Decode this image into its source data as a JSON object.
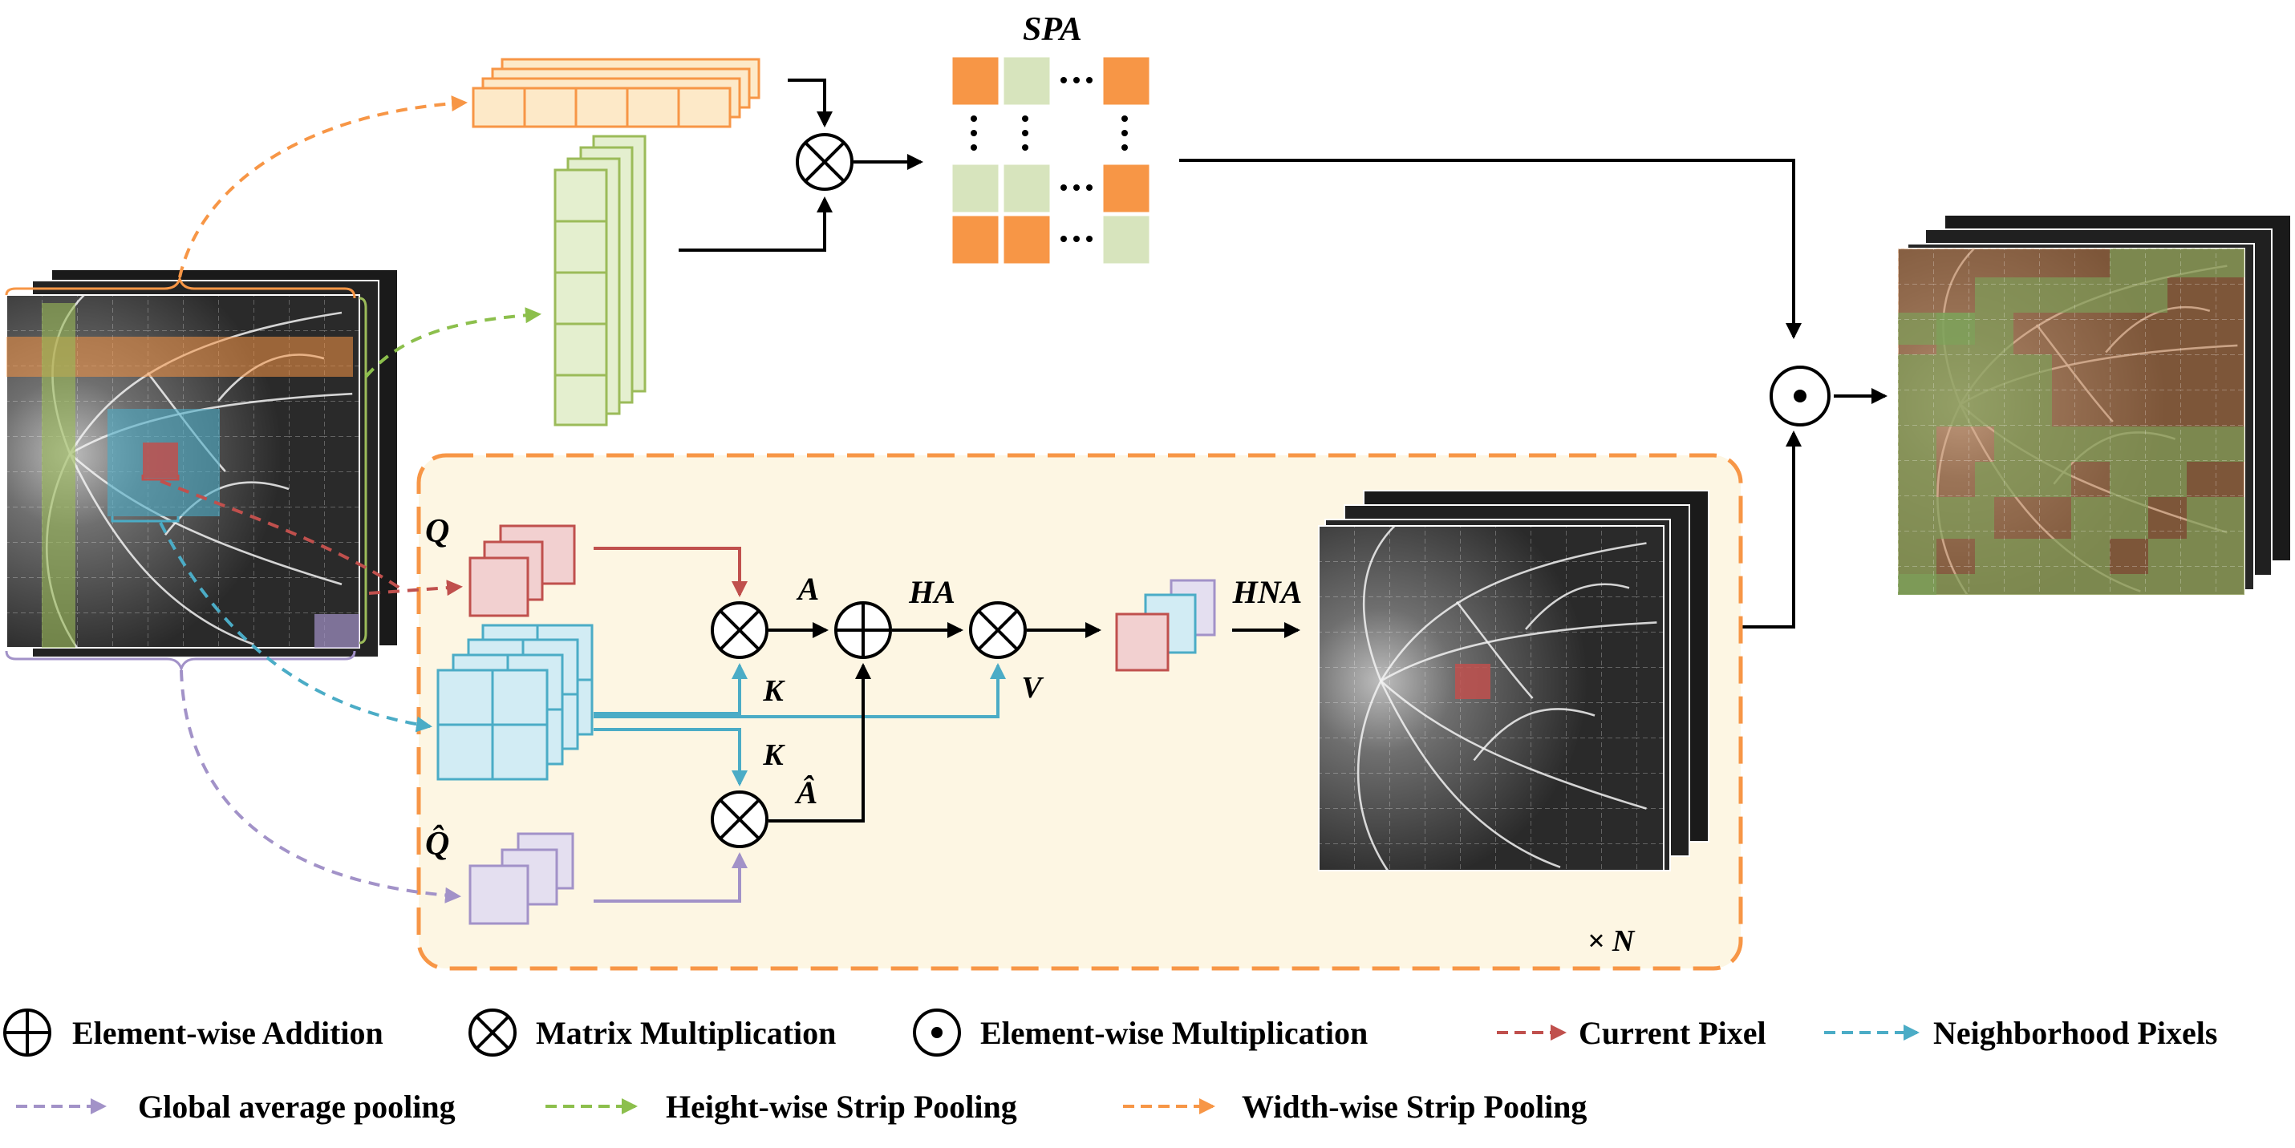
{
  "labels": {
    "spa": "SPA",
    "q": "Q",
    "q_hat": "Q̂",
    "a": "A",
    "ha": "HA",
    "a_hat": "Â",
    "k_top": "K",
    "k_bottom": "K",
    "v": "V",
    "hna": "HNA",
    "repeat": "× N"
  },
  "legend": [
    {
      "symbol": "add",
      "text": "Element-wise Addition"
    },
    {
      "symbol": "mul",
      "text": "Matrix Multiplication"
    },
    {
      "symbol": "dot",
      "text": "Element-wise Multiplication"
    },
    {
      "symbol": "arrow",
      "color": "#c0504d",
      "text": "Current Pixel"
    },
    {
      "symbol": "arrow",
      "color": "#4bacc6",
      "text": "Neighborhood Pixels"
    },
    {
      "symbol": "arrow",
      "color": "#a292c8",
      "text": "Global average pooling"
    },
    {
      "symbol": "arrow",
      "color": "#8cbf4c",
      "text": "Height-wise Strip Pooling"
    },
    {
      "symbol": "arrow",
      "color": "#f79646",
      "text": "Width-wise Strip Pooling"
    }
  ],
  "colors": {
    "orange": "#f79646",
    "green": "#9bbb59",
    "red": "#c0504d",
    "blue": "#4bacc6",
    "purple": "#a292c8",
    "panel_bg": "#fdf6e3"
  }
}
